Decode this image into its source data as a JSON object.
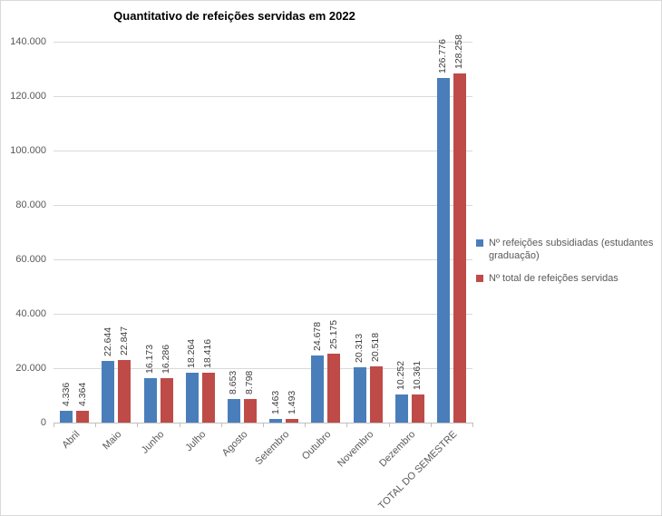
{
  "chart_data": {
    "type": "bar",
    "title": "Quantitativo de refeições servidas em 2022",
    "categories": [
      "Abril",
      "Maio",
      "Junho",
      "Julho",
      "Agosto",
      "Setembro",
      "Outubro",
      "Novembro",
      "Dezembro",
      "TOTAL DO SEMESTRE"
    ],
    "series": [
      {
        "name": "Nº refeições subsidiadas (estudantes graduação)",
        "color": "#4A7EBB",
        "values": [
          4336,
          22644,
          16173,
          18264,
          8653,
          1463,
          24678,
          20313,
          10252,
          126776
        ]
      },
      {
        "name": "Nº total de refeições servidas",
        "color": "#BE4B48",
        "values": [
          4364,
          22847,
          16286,
          18416,
          8798,
          1493,
          25175,
          20518,
          10361,
          128258
        ]
      }
    ],
    "y_axis": {
      "min": 0,
      "max": 140000,
      "step": 20000,
      "tick_labels": [
        "0",
        "20.000",
        "40.000",
        "60.000",
        "80.000",
        "100.000",
        "120.000",
        "140.000"
      ]
    },
    "number_format": "thousands-dot",
    "grid": true,
    "legend_position": "right",
    "data_labels_rotation": -90,
    "category_labels_rotation": -45
  }
}
